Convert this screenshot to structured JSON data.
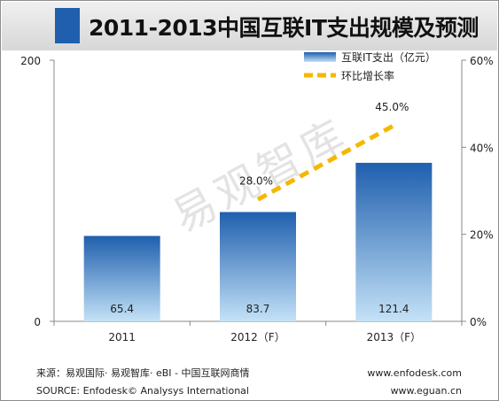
{
  "title": "2011-2013中国互联IT支出规模及预测",
  "watermark": "易观智库",
  "footer": {
    "source_cn": "来源：易观国际· 易观智库· eBI - 中国互联网商情",
    "source_en": "SOURCE: Enfodesk© Analysys International",
    "url1": "www.enfodesk.com",
    "url2": "www.eguan.cn"
  },
  "colors": {
    "bar_top": "#1f5fae",
    "bar_bottom": "#c4e2f7",
    "line": "#f5b800"
  },
  "chart_data": {
    "type": "bar",
    "categories": [
      "2011",
      "2012（F）",
      "2013（F）"
    ],
    "series": [
      {
        "name": "互联IT支出（亿元）",
        "type": "bar",
        "axis": "left",
        "values": [
          65.4,
          83.7,
          121.4
        ],
        "labels": [
          "65.4",
          "83.7",
          "121.4"
        ]
      },
      {
        "name": "环比增长率",
        "type": "line",
        "axis": "right",
        "values": [
          null,
          28.0,
          45.0
        ],
        "labels": [
          "",
          "28.0%",
          "45.0%"
        ]
      }
    ],
    "y_left": {
      "min": 0,
      "max": 200,
      "ticks": [
        "0",
        "200"
      ]
    },
    "y_right": {
      "min": 0,
      "max": 60,
      "ticks": [
        "0%",
        "20%",
        "40%",
        "60%"
      ]
    },
    "legend_position": "top-right"
  }
}
